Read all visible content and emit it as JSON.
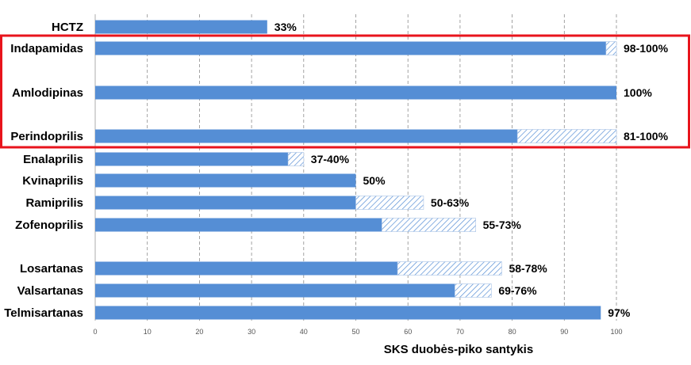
{
  "chart_data": {
    "type": "bar",
    "orientation": "horizontal",
    "xlabel": "SKS duobės-piko santykis",
    "xlim": [
      0,
      100
    ],
    "x_ticks": [
      0,
      10,
      20,
      30,
      40,
      50,
      60,
      70,
      80,
      90,
      100
    ],
    "grid": "vertical-dashed",
    "colors": {
      "bar": "#558ed5",
      "hatch": "#558ed5",
      "highlight_box": "#e8141c"
    },
    "categories": [
      {
        "name": "HCTZ",
        "min": 33,
        "max": 33,
        "label": "33%"
      },
      {
        "name": "Indapamidas",
        "min": 98,
        "max": 100,
        "label": "98-100%"
      },
      {
        "name": "Amlodipinas",
        "min": 100,
        "max": 100,
        "label": "100%"
      },
      {
        "name": "Perindoprilis",
        "min": 81,
        "max": 100,
        "label": "81-100%"
      },
      {
        "name": "Enalaprilis",
        "min": 37,
        "max": 40,
        "label": "37-40%"
      },
      {
        "name": "Kvinaprilis",
        "min": 50,
        "max": 50,
        "label": "50%"
      },
      {
        "name": "Ramiprilis",
        "min": 50,
        "max": 63,
        "label": "50-63%"
      },
      {
        "name": "Zofenoprilis",
        "min": 55,
        "max": 73,
        "label": "55-73%"
      },
      {
        "name": "Losartanas",
        "min": 58,
        "max": 78,
        "label": "58-78%"
      },
      {
        "name": "Valsartanas",
        "min": 69,
        "max": 76,
        "label": "69-76%"
      },
      {
        "name": "Telmisartanas",
        "min": 97,
        "max": 97,
        "label": "97%"
      }
    ],
    "highlighted": [
      "Indapamidas",
      "Amlodipinas",
      "Perindoprilis"
    ]
  }
}
